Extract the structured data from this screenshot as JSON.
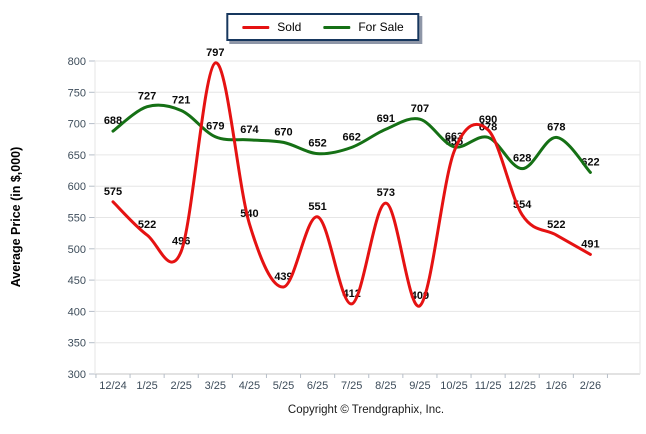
{
  "chart_data": {
    "type": "line",
    "title": "",
    "ylabel": "Average Price (in $,000)",
    "xlabel": "",
    "footer": "Copyright © Trendgraphix, Inc.",
    "categories": [
      "12/24",
      "1/25",
      "2/25",
      "3/25",
      "4/25",
      "5/25",
      "6/25",
      "7/25",
      "8/25",
      "9/25",
      "10/25",
      "11/25",
      "12/25",
      "1/26",
      "2/26"
    ],
    "series": [
      {
        "name": "Sold",
        "color": "#e51212",
        "values": [
          575,
          522,
          496,
          797,
          540,
          439,
          551,
          412,
          573,
          409,
          655,
          690,
          554,
          522,
          491
        ]
      },
      {
        "name": "For Sale",
        "color": "#157015",
        "values": [
          688,
          727,
          721,
          679,
          674,
          670,
          652,
          662,
          691,
          707,
          663,
          678,
          628,
          678,
          622
        ]
      }
    ],
    "ylim": [
      300,
      800
    ],
    "ytick_step": 50,
    "grid": "horizontal",
    "line_style": "smooth-spline",
    "legend_position": "top-center",
    "styles": {
      "grid_color": "#e6e6e6",
      "axis_line_color": "#c6c6c6",
      "tick_color": "#b6bec8",
      "tick_label_color": "#3d4c5a",
      "data_label_color": "#0a0a0a",
      "legend_border_color": "#17375e",
      "legend_shadow_color": "#7a8498",
      "background_color": "#ffffff"
    }
  }
}
